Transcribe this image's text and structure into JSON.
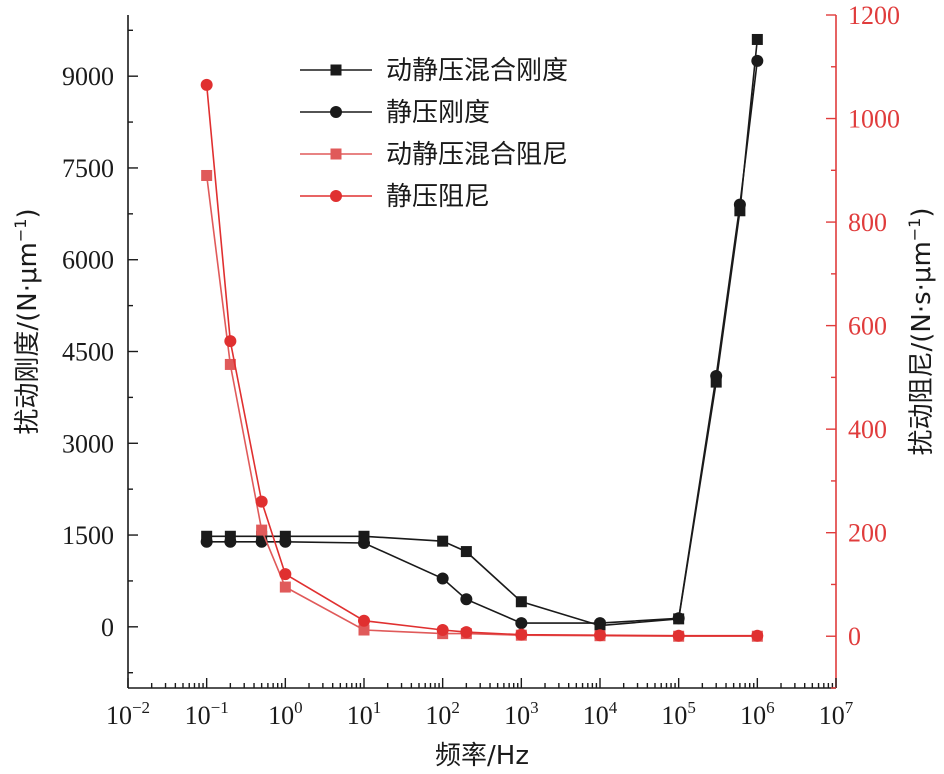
{
  "chart_data": {
    "type": "line",
    "xscale": "log",
    "xlim_exp": [
      -2,
      7
    ],
    "x_ticks": [
      {
        "base": "10",
        "exp": "−2"
      },
      {
        "base": "10",
        "exp": "−1"
      },
      {
        "base": "10",
        "exp": "0"
      },
      {
        "base": "10",
        "exp": "1"
      },
      {
        "base": "10",
        "exp": "2"
      },
      {
        "base": "10",
        "exp": "3"
      },
      {
        "base": "10",
        "exp": "4"
      },
      {
        "base": "10",
        "exp": "5"
      },
      {
        "base": "10",
        "exp": "6"
      },
      {
        "base": "10",
        "exp": "7"
      }
    ],
    "xlabel": "频率/Hz",
    "y_left": {
      "label": "扰动刚度/(N·μm",
      "label_sup": "−1",
      "label_close": ")",
      "ylim": [
        -1000,
        10000
      ],
      "ticks": [
        "0",
        "1500",
        "3000",
        "4500",
        "6000",
        "7500",
        "9000"
      ],
      "tick_values": [
        0,
        1500,
        3000,
        4500,
        6000,
        7500,
        9000
      ],
      "color": "#1a1a1a"
    },
    "y_right": {
      "label": "扰动阻尼/(N·s·μm",
      "label_sup": "−1",
      "label_close": ")",
      "ylim": [
        -100,
        1200
      ],
      "ticks": [
        "0",
        "200",
        "400",
        "600",
        "800",
        "1000",
        "1200"
      ],
      "tick_values": [
        0,
        200,
        400,
        600,
        800,
        1000,
        1200
      ],
      "color": "#e03c3c"
    },
    "series": [
      {
        "name": "动静压混合刚度",
        "axis": "left",
        "color": "#1a1a1a",
        "marker": "square",
        "x": [
          0.1,
          0.2,
          0.5,
          1,
          10,
          100,
          200,
          1000,
          10000,
          100000,
          300000,
          600000,
          1000000
        ],
        "y": [
          1480,
          1480,
          1480,
          1480,
          1480,
          1400,
          1230,
          410,
          20,
          130,
          4000,
          6800,
          9600
        ]
      },
      {
        "name": "静压刚度",
        "axis": "left",
        "color": "#1a1a1a",
        "marker": "circle",
        "x": [
          0.1,
          0.2,
          0.5,
          1,
          10,
          100,
          200,
          1000,
          10000,
          100000,
          300000,
          600000,
          1000000
        ],
        "y": [
          1390,
          1390,
          1390,
          1390,
          1370,
          790,
          450,
          60,
          60,
          140,
          4100,
          6900,
          9250
        ]
      },
      {
        "name": "动静压混合阻尼",
        "axis": "right",
        "color": "#e05a5a",
        "marker": "square",
        "x": [
          0.1,
          0.2,
          0.5,
          1,
          10,
          100,
          200,
          1000,
          10000,
          100000,
          1000000
        ],
        "y": [
          890,
          525,
          205,
          95,
          12,
          5,
          5,
          2,
          1,
          0,
          0
        ]
      },
      {
        "name": "静压阻尼",
        "axis": "right",
        "color": "#e03030",
        "marker": "circle",
        "x": [
          0.1,
          0.2,
          0.5,
          1,
          10,
          100,
          200,
          1000,
          10000,
          100000,
          1000000
        ],
        "y": [
          1065,
          570,
          260,
          120,
          30,
          12,
          8,
          3,
          2,
          1,
          1
        ]
      }
    ]
  }
}
